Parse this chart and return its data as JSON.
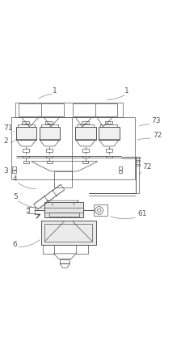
{
  "bg_color": "#ffffff",
  "line_color": "#555555",
  "light_line_color": "#888888",
  "label_color": "#555555",
  "label_fontsize": 6.5,
  "fig_width": 2.24,
  "fig_height": 4.43,
  "dpi": 100
}
